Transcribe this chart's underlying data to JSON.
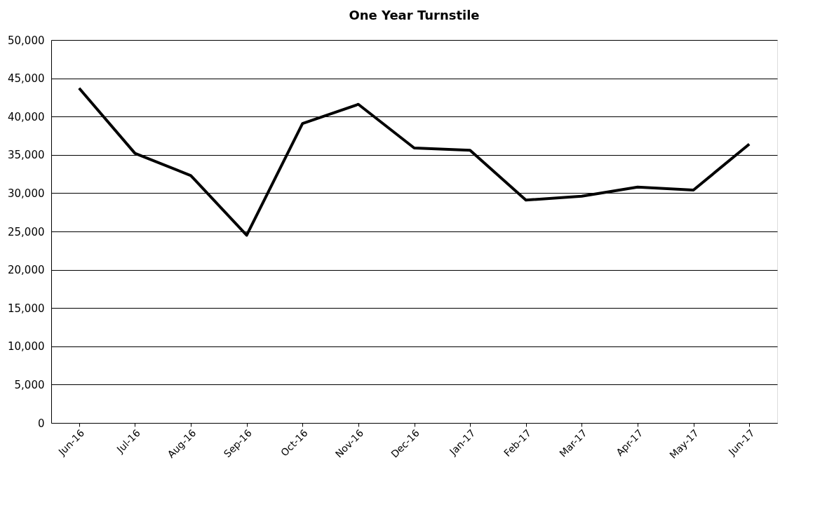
{
  "chart_data": {
    "type": "line",
    "title": "One Year Turnstile",
    "categories": [
      "Jun-16",
      "Jul-16",
      "Aug-16",
      "Sep-16",
      "Oct-16",
      "Nov-16",
      "Dec-16",
      "Jan-17",
      "Feb-17",
      "Mar-17",
      "Apr-17",
      "May-17",
      "Jun-17"
    ],
    "series": [
      {
        "color": "#000000",
        "values": [
          43700,
          35200,
          32300,
          24500,
          39100,
          41600,
          35900,
          35600,
          29100,
          29600,
          30800,
          30400,
          36400
        ]
      }
    ],
    "ylim": [
      0,
      50000
    ],
    "yticks": [
      {
        "value": 0,
        "label": "0"
      },
      {
        "value": 5000,
        "label": "5,000"
      },
      {
        "value": 10000,
        "label": "10,000"
      },
      {
        "value": 15000,
        "label": "15,000"
      },
      {
        "value": 20000,
        "label": "20,000"
      },
      {
        "value": 25000,
        "label": "25,000"
      },
      {
        "value": 30000,
        "label": "30,000"
      },
      {
        "value": 35000,
        "label": "35,000"
      },
      {
        "value": 40000,
        "label": "40,000"
      },
      {
        "value": 45000,
        "label": "45,000"
      },
      {
        "value": 50000,
        "label": "50,000"
      }
    ],
    "grid": "y",
    "marker": "none",
    "line_style": "solid"
  }
}
